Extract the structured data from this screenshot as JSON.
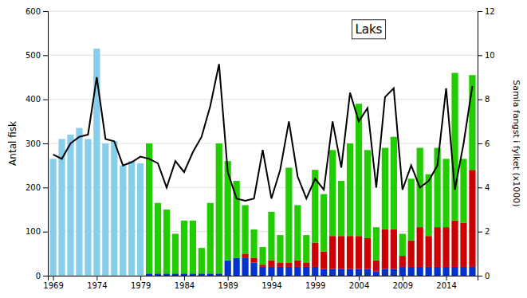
{
  "chart_data": {
    "type": "bar",
    "stacked": true,
    "grid": true,
    "annotation": "Laks",
    "ylabel": "Antal fisk",
    "y2label": "Samla fangst i fylket (x1000)",
    "x": [
      1969,
      1970,
      1971,
      1972,
      1973,
      1974,
      1975,
      1976,
      1977,
      1978,
      1979,
      1980,
      1981,
      1982,
      1983,
      1984,
      1985,
      1986,
      1987,
      1988,
      1989,
      1990,
      1991,
      1992,
      1993,
      1994,
      1995,
      1996,
      1997,
      1998,
      1999,
      2000,
      2001,
      2002,
      2003,
      2004,
      2005,
      2006,
      2007,
      2008,
      2009,
      2010,
      2011,
      2012,
      2013,
      2014,
      2015,
      2016,
      2017
    ],
    "xlim": [
      1968.4,
      2017.6
    ],
    "xticks": [
      1969,
      1974,
      1979,
      1984,
      1989,
      1994,
      1999,
      2004,
      2009,
      2014
    ],
    "ylim": [
      0,
      600
    ],
    "yticks": [
      0,
      100,
      200,
      300,
      400,
      500,
      600
    ],
    "y2lim": [
      0,
      12
    ],
    "y2ticks": [
      0,
      2,
      4,
      6,
      8,
      10,
      12
    ],
    "series": [
      {
        "type": "bar",
        "color": "#87CEEB",
        "values": [
          265,
          310,
          320,
          335,
          310,
          515,
          300,
          305,
          250,
          260,
          255,
          0,
          0,
          0,
          0,
          0,
          0,
          0,
          0,
          0,
          0,
          0,
          0,
          0,
          0,
          0,
          0,
          0,
          0,
          0,
          0,
          0,
          0,
          0,
          0,
          0,
          0,
          0,
          0,
          0,
          0,
          0,
          0,
          0,
          0,
          0,
          0,
          0,
          0
        ]
      },
      {
        "type": "bar",
        "color": "#0033CC",
        "values": [
          0,
          0,
          0,
          0,
          0,
          0,
          0,
          0,
          0,
          0,
          0,
          5,
          5,
          5,
          5,
          5,
          5,
          5,
          5,
          5,
          35,
          40,
          40,
          30,
          20,
          20,
          20,
          20,
          20,
          20,
          20,
          15,
          15,
          15,
          15,
          15,
          15,
          10,
          15,
          15,
          20,
          20,
          20,
          20,
          20,
          20,
          20,
          20,
          20
        ]
      },
      {
        "type": "bar",
        "color": "#CC0000",
        "values": [
          0,
          0,
          0,
          0,
          0,
          0,
          0,
          0,
          0,
          0,
          0,
          0,
          0,
          0,
          0,
          0,
          0,
          0,
          0,
          0,
          0,
          0,
          10,
          10,
          5,
          15,
          10,
          10,
          15,
          10,
          55,
          40,
          75,
          75,
          75,
          75,
          70,
          25,
          90,
          90,
          25,
          60,
          90,
          70,
          90,
          90,
          105,
          100,
          220
        ]
      },
      {
        "type": "bar",
        "color": "#22CC00",
        "values": [
          0,
          0,
          0,
          0,
          0,
          0,
          0,
          0,
          0,
          0,
          0,
          295,
          160,
          145,
          90,
          120,
          120,
          58,
          160,
          295,
          225,
          175,
          110,
          65,
          40,
          110,
          62,
          215,
          125,
          62,
          165,
          130,
          195,
          125,
          210,
          300,
          200,
          75,
          185,
          210,
          50,
          140,
          180,
          140,
          180,
          155,
          335,
          145,
          215
        ]
      },
      {
        "type": "line",
        "axis": "y2",
        "color": "#000000",
        "values": [
          5.5,
          5.3,
          6.0,
          6.3,
          6.4,
          9.0,
          6.2,
          6.1,
          5.0,
          5.15,
          5.4,
          5.3,
          5.1,
          4.0,
          5.2,
          4.7,
          5.6,
          6.3,
          7.7,
          9.6,
          4.7,
          3.5,
          3.4,
          3.5,
          5.7,
          3.5,
          4.8,
          7.0,
          4.5,
          3.5,
          4.4,
          3.9,
          7.0,
          4.9,
          8.3,
          7.0,
          7.6,
          4.0,
          8.1,
          8.5,
          3.9,
          5.0,
          4.0,
          4.3,
          5.0,
          8.5,
          3.9,
          6.0,
          8.6
        ]
      }
    ]
  }
}
